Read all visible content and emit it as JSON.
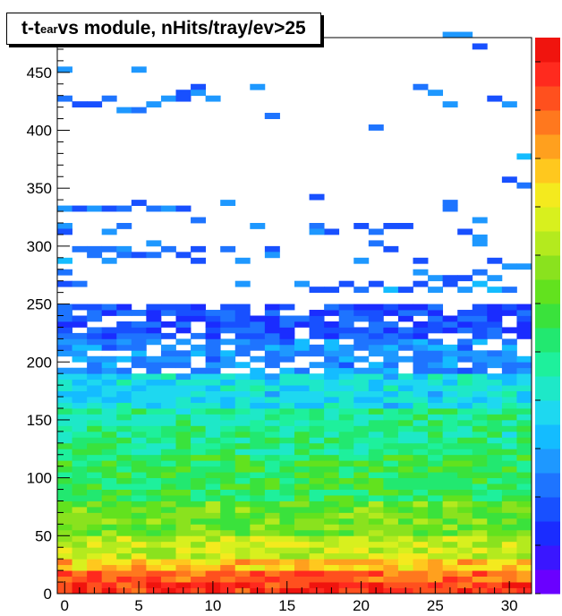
{
  "chart_data": {
    "type": "heatmap",
    "title_main": "t-t",
    "title_sub": "ear",
    "title_rest": " vs module, nHits/tray/ev>25",
    "xlabel": "",
    "ylabel": "",
    "xlim": [
      -0.5,
      31.5
    ],
    "ylim": [
      0,
      480
    ],
    "x_ticks": [
      "0",
      "5",
      "10",
      "15",
      "20",
      "25",
      "30"
    ],
    "y_ticks": [
      "0",
      "50",
      "100",
      "150",
      "200",
      "250",
      "300",
      "350",
      "400",
      "450"
    ],
    "x_bin_width": 1,
    "y_bin_width": 5,
    "color_scale": "rainbow (low=purple/blue, high=red)",
    "density_profile": [
      {
        "y_from": 0,
        "y_to": 10,
        "level": 0.95
      },
      {
        "y_from": 10,
        "y_to": 20,
        "level": 0.88
      },
      {
        "y_from": 20,
        "y_to": 30,
        "level": 0.78
      },
      {
        "y_from": 30,
        "y_to": 50,
        "level": 0.66
      },
      {
        "y_from": 50,
        "y_to": 80,
        "level": 0.56
      },
      {
        "y_from": 80,
        "y_to": 120,
        "level": 0.48
      },
      {
        "y_from": 120,
        "y_to": 160,
        "level": 0.42
      },
      {
        "y_from": 160,
        "y_to": 190,
        "level": 0.32
      },
      {
        "y_from": 190,
        "y_to": 220,
        "level": 0.2
      },
      {
        "y_from": 220,
        "y_to": 250,
        "level": 0.12
      }
    ],
    "sparse_cells": [
      [
        11,
        480
      ],
      [
        12,
        481
      ],
      [
        14,
        482
      ],
      [
        26,
        480
      ],
      [
        27,
        480
      ],
      [
        28,
        471
      ],
      [
        0,
        452
      ],
      [
        5,
        452
      ],
      [
        9,
        439
      ],
      [
        13,
        439
      ],
      [
        24,
        439
      ],
      [
        8,
        434
      ],
      [
        9,
        430
      ],
      [
        0,
        426
      ],
      [
        1,
        424
      ],
      [
        2,
        424
      ],
      [
        3,
        426
      ],
      [
        4,
        418
      ],
      [
        5,
        418
      ],
      [
        6,
        422
      ],
      [
        7,
        427
      ],
      [
        8,
        427
      ],
      [
        10,
        427
      ],
      [
        25,
        431
      ],
      [
        26,
        422
      ],
      [
        29,
        427
      ],
      [
        30,
        422
      ],
      [
        14,
        414
      ],
      [
        14,
        410
      ],
      [
        21,
        402
      ],
      [
        31,
        378
      ],
      [
        30,
        358
      ],
      [
        31,
        354
      ],
      [
        11,
        338
      ],
      [
        17,
        342
      ],
      [
        26,
        338
      ],
      [
        26,
        334
      ],
      [
        28,
        324
      ],
      [
        0,
        334
      ],
      [
        1,
        330
      ],
      [
        2,
        330
      ],
      [
        3,
        330
      ],
      [
        4,
        330
      ],
      [
        5,
        335
      ],
      [
        6,
        332
      ],
      [
        7,
        333
      ],
      [
        8,
        331
      ],
      [
        0,
        318
      ],
      [
        4,
        318
      ],
      [
        9,
        320
      ],
      [
        13,
        318
      ],
      [
        17,
        318
      ],
      [
        18,
        314
      ],
      [
        20,
        318
      ],
      [
        21,
        312
      ],
      [
        22,
        318
      ],
      [
        23,
        316
      ],
      [
        0,
        312
      ],
      [
        3,
        310
      ],
      [
        17,
        310
      ],
      [
        21,
        304
      ],
      [
        27,
        310
      ],
      [
        28,
        308
      ],
      [
        1,
        296
      ],
      [
        2,
        298
      ],
      [
        3,
        298
      ],
      [
        4,
        296
      ],
      [
        6,
        300
      ],
      [
        7,
        296
      ],
      [
        9,
        296
      ],
      [
        11,
        296
      ],
      [
        14,
        298
      ],
      [
        22,
        298
      ],
      [
        28,
        300
      ],
      [
        0,
        288
      ],
      [
        2,
        290
      ],
      [
        3,
        286
      ],
      [
        4,
        290
      ],
      [
        5,
        292
      ],
      [
        6,
        292
      ],
      [
        8,
        290
      ],
      [
        9,
        286
      ],
      [
        12,
        286
      ],
      [
        14,
        290
      ],
      [
        20,
        286
      ],
      [
        24,
        286
      ],
      [
        29,
        286
      ],
      [
        30,
        282
      ],
      [
        31,
        282
      ],
      [
        0,
        276
      ],
      [
        24,
        276
      ],
      [
        25,
        272
      ],
      [
        26,
        274
      ],
      [
        27,
        270
      ],
      [
        28,
        278
      ],
      [
        29,
        274
      ],
      [
        0,
        266
      ],
      [
        1,
        266
      ],
      [
        12,
        266
      ],
      [
        16,
        266
      ],
      [
        17,
        262
      ],
      [
        18,
        262
      ],
      [
        19,
        266
      ],
      [
        20,
        262
      ],
      [
        21,
        266
      ],
      [
        22,
        262
      ],
      [
        23,
        262
      ],
      [
        24,
        266
      ],
      [
        25,
        262
      ],
      [
        26,
        266
      ],
      [
        27,
        262
      ],
      [
        28,
        266
      ],
      [
        29,
        262
      ],
      [
        30,
        262
      ]
    ],
    "grid": false,
    "legend": "right color bar"
  }
}
